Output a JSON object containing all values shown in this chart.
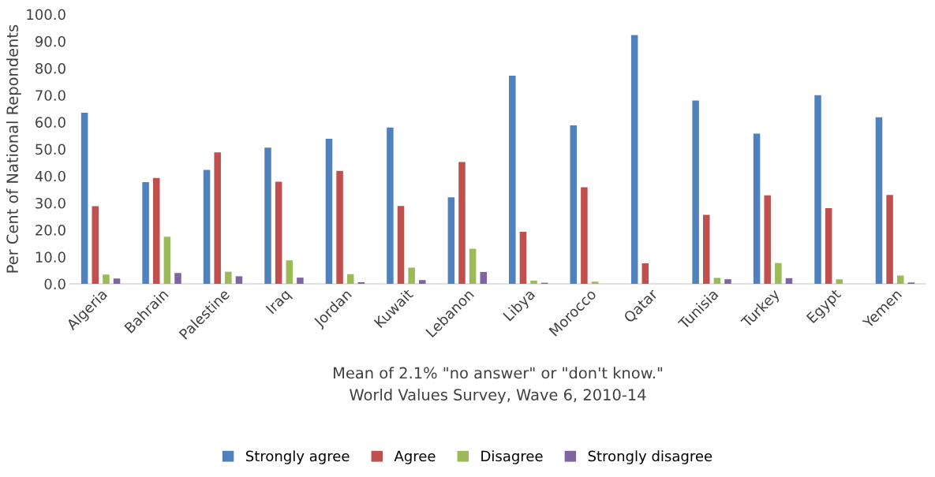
{
  "chart_data": {
    "type": "bar",
    "ylabel": "Per Cent of National Repondents",
    "xlabel": "Mean of 2.1% \"no answer\" or \"don't know.\"\nWorld Values Survey, Wave 6, 2010-14",
    "categories": [
      "Algeria",
      "Bahrain",
      "Palestine",
      "Iraq",
      "Jordan",
      "Kuwait",
      "Lebanon",
      "Libya",
      "Morocco",
      "Qatar",
      "Tunisia",
      "Turkey",
      "Egypt",
      "Yemen"
    ],
    "series": [
      {
        "name": "Strongly agree",
        "color": "#4f81bd",
        "values": [
          63.5,
          37.7,
          42.3,
          50.5,
          53.8,
          58.0,
          32.1,
          77.2,
          58.8,
          92.3,
          68.0,
          55.7,
          70.0,
          61.8
        ]
      },
      {
        "name": "Agree",
        "color": "#c0504d",
        "values": [
          28.8,
          39.3,
          48.8,
          37.9,
          41.9,
          28.9,
          45.2,
          19.3,
          35.8,
          7.6,
          25.6,
          32.8,
          28.1,
          33.0
        ]
      },
      {
        "name": "Disagree",
        "color": "#9bbb59",
        "values": [
          3.4,
          17.5,
          4.5,
          8.7,
          3.6,
          6.0,
          13.0,
          1.2,
          0.8,
          null,
          2.2,
          7.7,
          1.7,
          3.1
        ]
      },
      {
        "name": "Strongly disagree",
        "color": "#8064a2",
        "values": [
          2.0,
          4.0,
          2.8,
          2.3,
          0.6,
          1.4,
          4.4,
          0.4,
          null,
          null,
          1.7,
          2.1,
          null,
          0.5
        ]
      }
    ],
    "ylim": [
      0,
      100
    ],
    "yticks": [
      {
        "value": 0,
        "label": "0.0"
      },
      {
        "value": 10,
        "label": "10.0"
      },
      {
        "value": 20,
        "label": "20.0"
      },
      {
        "value": 30,
        "label": "30.0"
      },
      {
        "value": 40,
        "label": "40.0"
      },
      {
        "value": 50,
        "label": "50.0"
      },
      {
        "value": 60,
        "label": "60.0"
      },
      {
        "value": 70,
        "label": "70.0"
      },
      {
        "value": 80,
        "label": "80.0"
      },
      {
        "value": 90,
        "label": "90.0"
      },
      {
        "value": 100,
        "label": "100.0"
      }
    ],
    "grid": false,
    "legend": "bottom"
  }
}
